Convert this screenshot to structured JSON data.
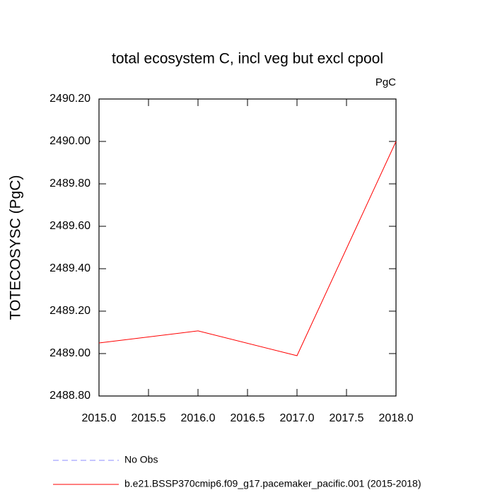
{
  "chart_data": {
    "type": "line",
    "title": "total ecosystem C, incl veg but excl cpool",
    "units": "PgC",
    "ylabel": "TOTECOSYSC  (PgC)",
    "x": [
      2015,
      2016,
      2017,
      2018
    ],
    "xlim": [
      2015,
      2018
    ],
    "xticks": [
      {
        "value": 2015,
        "label": "2015.0"
      },
      {
        "value": 2015.5,
        "label": "2015.5"
      },
      {
        "value": 2016,
        "label": "2016.0"
      },
      {
        "value": 2016.5,
        "label": "2016.5"
      },
      {
        "value": 2017,
        "label": "2017.0"
      },
      {
        "value": 2017.5,
        "label": "2017.5"
      },
      {
        "value": 2018,
        "label": "2018.0"
      }
    ],
    "ylim": [
      2488.8,
      2490.2
    ],
    "yticks": [
      {
        "value": 2488.8,
        "label": "2488.80"
      },
      {
        "value": 2489.0,
        "label": "2489.00"
      },
      {
        "value": 2489.2,
        "label": "2489.20"
      },
      {
        "value": 2489.4,
        "label": "2489.40"
      },
      {
        "value": 2489.6,
        "label": "2489.60"
      },
      {
        "value": 2489.8,
        "label": "2489.80"
      },
      {
        "value": 2490.0,
        "label": "2490.00"
      },
      {
        "value": 2490.2,
        "label": "2490.20"
      }
    ],
    "series": [
      {
        "name": "No Obs",
        "color": "#8c8cff",
        "dash": true,
        "values": [
          null,
          null,
          null,
          null
        ]
      },
      {
        "name": "b.e21.BSSP370cmip6.f09_g17.pacemaker_pacific.001 (2015-2018)",
        "color": "#ff0000",
        "dash": false,
        "values": [
          2489.05,
          2489.107,
          2488.99,
          2490.0
        ]
      }
    ]
  }
}
